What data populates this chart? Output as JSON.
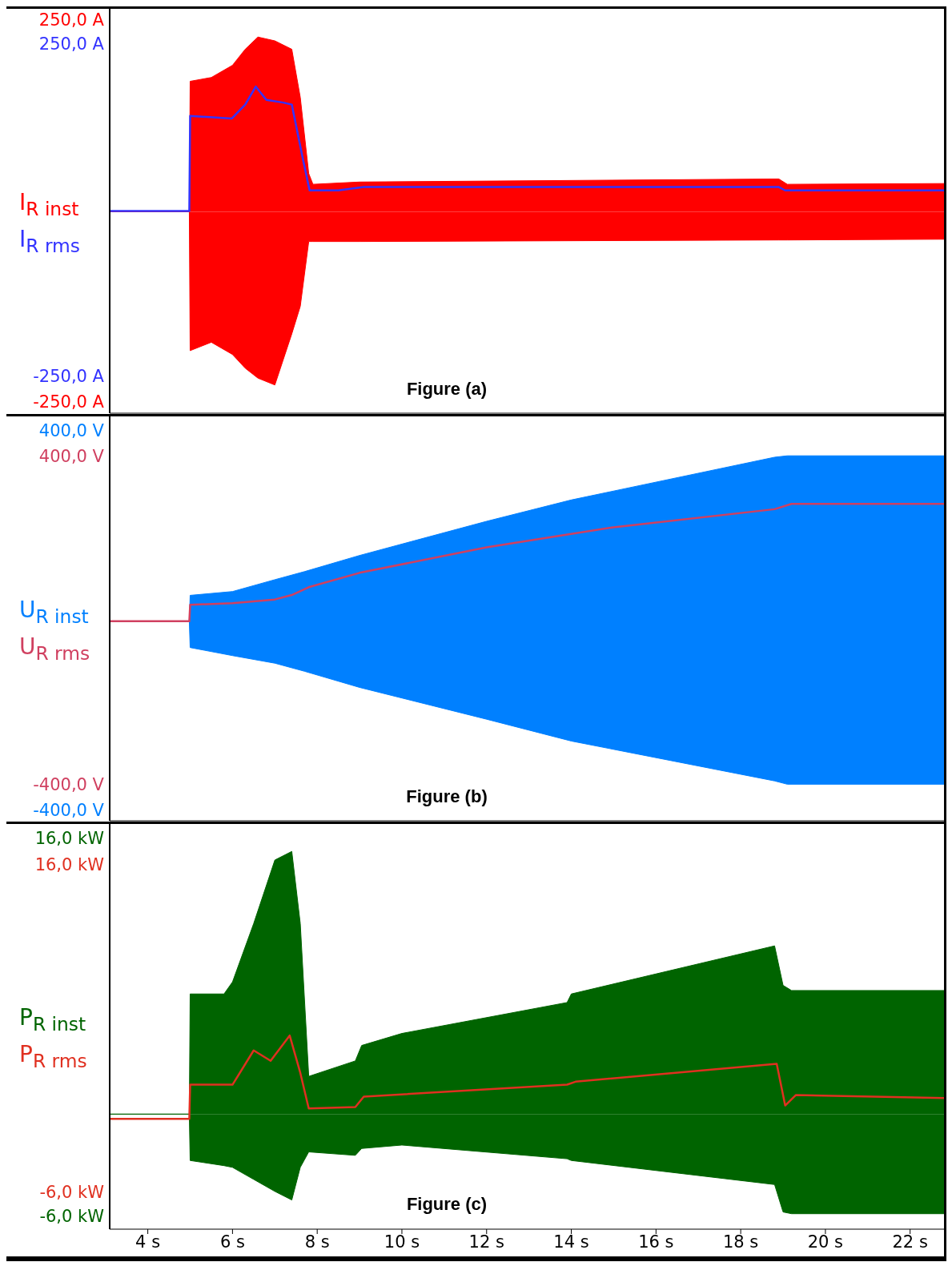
{
  "chart_data": [
    {
      "type": "line",
      "annotations": [
        "Figure (a)"
      ],
      "legend": "left",
      "tick_labels": "y",
      "xlim": [
        3.1,
        22.8
      ],
      "ylim": [
        -264,
        266
      ],
      "yticks": [
        {
          "value": 250,
          "label": "250,0 A"
        },
        {
          "value": -250,
          "label": "-250,0 A"
        }
      ],
      "y2lim": [
        -304,
        304
      ],
      "y2ticks": [
        {
          "value": 250,
          "label": "250,0 A"
        },
        {
          "value": -250,
          "label": "-250,0 A"
        }
      ],
      "series": [
        {
          "name": "I$_{R inst}$",
          "type": "area",
          "color": "#ff0000",
          "x": [
            3.1,
            4.98,
            5.0,
            5.5,
            6.0,
            6.3,
            6.6,
            7.0,
            7.4,
            7.6,
            7.8,
            7.9,
            9.0,
            18.9,
            19.1,
            22.8
          ],
          "values": [
            0,
            0,
            171,
            176,
            192,
            213,
            229,
            224,
            213,
            150,
            50,
            36,
            39,
            43,
            36,
            37
          ]
        },
        {
          "type": "area",
          "color": "#ff0000",
          "x": [
            3.1,
            4.98,
            5.0,
            5.5,
            6.0,
            6.3,
            6.6,
            7.0,
            7.4,
            7.6,
            7.8,
            7.9,
            9.0,
            18.9,
            19.1,
            22.8
          ],
          "values": [
            0,
            0,
            -182,
            -171,
            -187,
            -205,
            -218,
            -227,
            -160,
            -124,
            -39,
            -39,
            -39,
            -37,
            -37,
            -36
          ]
        },
        {
          "name": "I$_{R rms}$",
          "type": "line",
          "axis": "y2",
          "color": "#3333ff",
          "x": [
            3.1,
            4.98,
            5.0,
            5.98,
            6.3,
            6.55,
            6.8,
            7.2,
            7.4,
            7.65,
            7.82,
            8.5,
            9.1,
            18.9,
            19.05,
            22.8
          ],
          "values": [
            0,
            0,
            143,
            139,
            160,
            187,
            167,
            163,
            160,
            82,
            31,
            31,
            36,
            36,
            31,
            31
          ]
        }
      ]
    },
    {
      "type": "line",
      "annotations": [
        "Figure (b)"
      ],
      "legend": "left",
      "tick_labels": "y",
      "xlim": [
        3.1,
        22.8
      ],
      "ylim": [
        -420,
        432
      ],
      "yticks": [
        {
          "value": 400,
          "label": "400,0 V"
        },
        {
          "value": -400,
          "label": "-400,0 V"
        }
      ],
      "y2lim": [
        -486,
        499
      ],
      "y2ticks": [
        {
          "value": 400,
          "label": "400,0 V"
        },
        {
          "value": -400,
          "label": "-400,0 V"
        }
      ],
      "series": [
        {
          "name": "U$_{R inst}$",
          "type": "area",
          "color": "#0080ff",
          "x": [
            3.1,
            4.98,
            5.0,
            6.0,
            7.0,
            7.7,
            9.0,
            12.0,
            14.0,
            18.8,
            19.1,
            22.8
          ],
          "values": [
            0,
            0,
            55,
            63,
            88,
            105,
            139,
            211,
            256,
            346,
            349,
            349
          ]
        },
        {
          "type": "area",
          "color": "#0080ff",
          "x": [
            3.1,
            4.98,
            5.0,
            6.0,
            7.0,
            7.7,
            9.0,
            12.0,
            14.0,
            18.8,
            19.1,
            22.8
          ],
          "values": [
            0,
            0,
            -55,
            -72,
            -88,
            -105,
            -139,
            -206,
            -252,
            -336,
            -343,
            -343
          ]
        },
        {
          "name": "U$_{R rms}$",
          "type": "line",
          "axis": "y2",
          "color": "#d04060",
          "x": [
            3.1,
            4.98,
            5.0,
            6.0,
            7.0,
            7.4,
            7.8,
            9.0,
            12.0,
            15.0,
            18.8,
            19.2,
            22.8
          ],
          "values": [
            0,
            0,
            40,
            44,
            53,
            64,
            83,
            118,
            180,
            229,
            273,
            286,
            286
          ]
        }
      ]
    },
    {
      "type": "line",
      "annotations": [
        "Figure (c)"
      ],
      "legend": "left",
      "xlim": [
        3.1,
        22.8
      ],
      "xticks": [
        {
          "value": 4,
          "label": "4 s"
        },
        {
          "value": 6,
          "label": "6 s"
        },
        {
          "value": 8,
          "label": "8 s"
        },
        {
          "value": 10,
          "label": "10 s"
        },
        {
          "value": 12,
          "label": "12 s"
        },
        {
          "value": 14,
          "label": "14 s"
        },
        {
          "value": 16,
          "label": "16 s"
        },
        {
          "value": 18,
          "label": "18 s"
        },
        {
          "value": 20,
          "label": "20 s"
        },
        {
          "value": 22,
          "label": "22 s"
        }
      ],
      "ylim": [
        -6.7,
        16.9
      ],
      "yticks": [
        {
          "value": 16,
          "label": "16,0 kW"
        },
        {
          "value": -6,
          "label": "-6,0 kW"
        }
      ],
      "y2lim": [
        -8.4,
        18.8
      ],
      "y2ticks": [
        {
          "value": 16,
          "label": "16,0 kW"
        },
        {
          "value": -6,
          "label": "-6,0 kW"
        }
      ],
      "series": [
        {
          "name": "P$_{R inst}$",
          "type": "area",
          "color": "#006400",
          "x": [
            3.1,
            4.98,
            5.0,
            5.8,
            6.0,
            6.5,
            7.0,
            7.4,
            7.6,
            7.8,
            8.9,
            9.05,
            10.0,
            13.9,
            14.0,
            18.8,
            19.0,
            19.2,
            22.8
          ],
          "values": [
            0,
            0,
            7.0,
            7.0,
            7.7,
            11.1,
            14.8,
            15.3,
            11.1,
            2.2,
            3.1,
            4.0,
            4.7,
            6.5,
            7.0,
            9.8,
            7.5,
            7.2,
            7.2
          ]
        },
        {
          "type": "area",
          "color": "#006400",
          "x": [
            3.1,
            4.98,
            5.0,
            5.8,
            6.0,
            6.5,
            7.0,
            7.4,
            7.6,
            7.8,
            8.9,
            9.05,
            10.0,
            13.9,
            14.0,
            18.8,
            19.0,
            19.2,
            22.8
          ],
          "values": [
            0,
            0,
            -2.7,
            -3.0,
            -3.1,
            -3.8,
            -4.5,
            -5.0,
            -3.1,
            -2.2,
            -2.4,
            -2.0,
            -1.8,
            -2.6,
            -2.7,
            -4.1,
            -5.7,
            -5.8,
            -5.8
          ]
        },
        {
          "name": "P$_{R rms}$",
          "type": "line",
          "axis": "y2",
          "color": "#e03020",
          "x": [
            3.1,
            4.98,
            5.0,
            6.0,
            6.5,
            6.9,
            7.35,
            7.6,
            7.8,
            8.9,
            9.1,
            13.9,
            14.1,
            18.85,
            19.05,
            19.3,
            22.8
          ],
          "values": [
            -1.0,
            -1.0,
            1.3,
            1.3,
            3.6,
            2.9,
            4.6,
            2.1,
            -0.3,
            -0.2,
            0.5,
            1.3,
            1.5,
            2.7,
            -0.1,
            0.6,
            0.4
          ]
        }
      ]
    }
  ]
}
